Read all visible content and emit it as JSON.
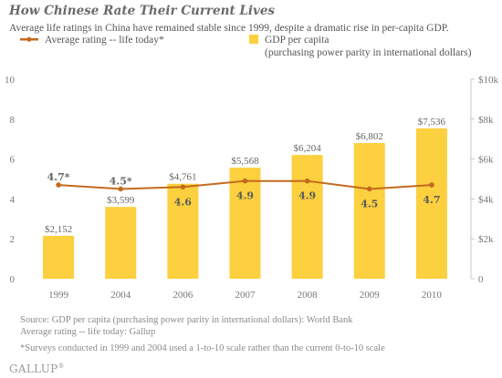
{
  "header": {
    "title": "How Chinese Rate Their Current Lives",
    "subtitle": "Average life ratings in China have remained stable since 1999, despite a dramatic rise in per-capita GDP."
  },
  "legend": {
    "line_label": "Average rating -- life today*",
    "bar_label_line1": "GDP per capita",
    "bar_label_line2": "(purchasing power parity in international dollars)"
  },
  "chart_data": {
    "type": "bar",
    "categories": [
      "1999",
      "2004",
      "2006",
      "2007",
      "2008",
      "2009",
      "2010"
    ],
    "series": [
      {
        "name": "GDP per capita",
        "kind": "bar",
        "axis": "right",
        "color": "#fcd03e",
        "values": [
          2152,
          3599,
          4761,
          5568,
          6204,
          6802,
          7536
        ],
        "labels": [
          "$2,152",
          "$3,599",
          "$4,761",
          "$5,568",
          "$6,204",
          "$6,802",
          "$7,536"
        ]
      },
      {
        "name": "Average rating -- life today*",
        "kind": "line",
        "axis": "left",
        "color": "#c46a1e",
        "values": [
          4.7,
          4.5,
          4.6,
          4.9,
          4.9,
          4.5,
          4.7
        ],
        "labels": [
          "4.7*",
          "4.5*",
          "4.6",
          "4.9",
          "4.9",
          "4.5",
          "4.7"
        ]
      }
    ],
    "y_left": {
      "ylim": [
        0,
        10
      ],
      "ticks": [
        "0",
        "2",
        "4",
        "6",
        "8",
        "10"
      ]
    },
    "y_right": {
      "ylim": [
        0,
        10000
      ],
      "ticks": [
        "0",
        "$2k",
        "$4k",
        "$6k",
        "$8k",
        "$10k"
      ]
    },
    "grid": false,
    "legend_position": "top"
  },
  "footer": {
    "source_line1": "Source: GDP per capita (purchasing power parity in international dollars): World Bank",
    "source_line2": "Average rating -- life today: Gallup",
    "note": "*Surveys conducted in 1999 and 2004 used a 1-to-10 scale rather than the current 0-to-10 scale",
    "brand": "GALLUP",
    "brand_mark": "®"
  }
}
